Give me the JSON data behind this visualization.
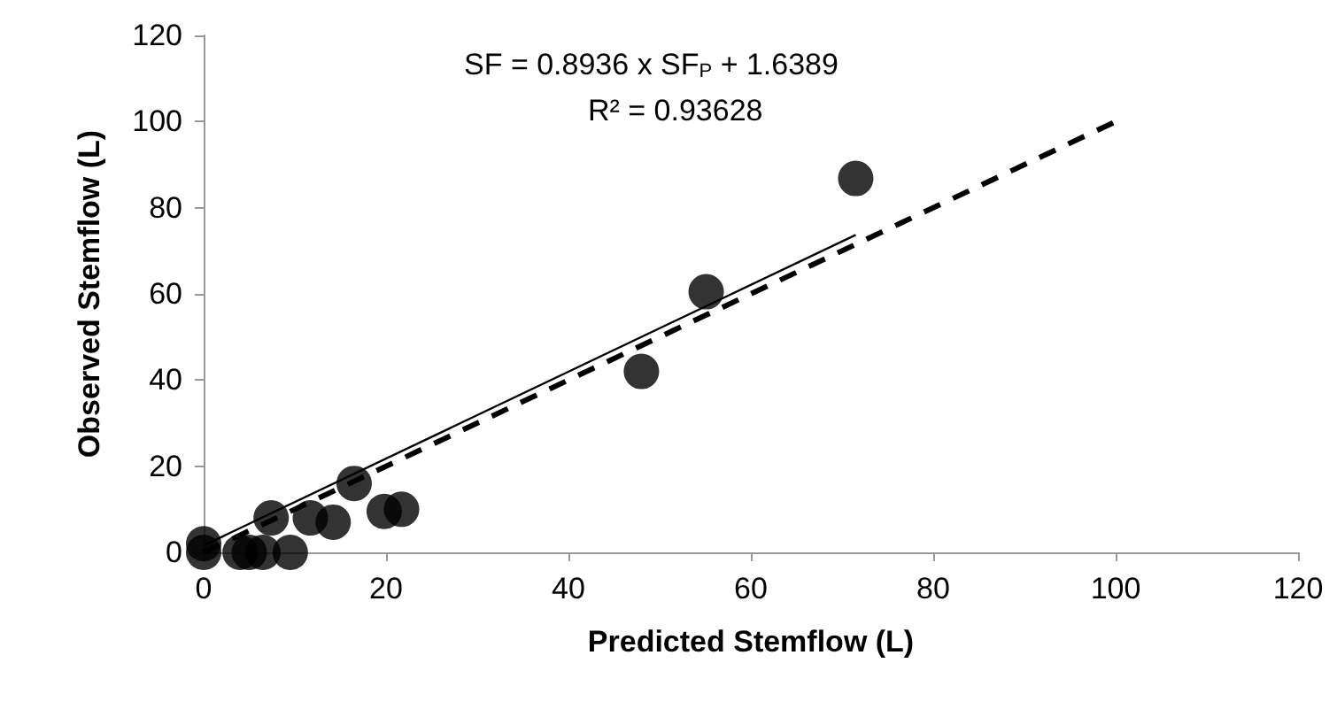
{
  "chart_data": {
    "type": "scatter",
    "xlabel": "Predicted Stemflow (L)",
    "ylabel": "Observed Stemflow (L)",
    "annotations": [
      "SF = 0.8936 x SF$_{P}$ + 1.6389",
      "R² = 0.93628"
    ],
    "xlim": [
      0,
      120
    ],
    "xticks": [
      0,
      20,
      40,
      60,
      80,
      100,
      120
    ],
    "ylim": [
      0,
      120
    ],
    "yticks": [
      0,
      20,
      40,
      60,
      80,
      100,
      120
    ],
    "grid": false,
    "marker": "circle",
    "series": [
      {
        "color": "#000000",
        "x": [
          0,
          0,
          4,
          5,
          6.5,
          7.4,
          9.5,
          11.7,
          14.2,
          16.5,
          19.8,
          21.7,
          48,
          55.1,
          71.5
        ],
        "values": [
          0,
          2,
          0,
          0,
          0,
          8,
          0,
          8,
          7,
          16,
          9.5,
          10,
          42,
          60.5,
          86.8
        ]
      },
      {
        "type": "line",
        "marker": "none",
        "color": "#000000",
        "line_style": "solid",
        "x": [
          0,
          71.5
        ],
        "values": [
          1.6,
          73.7
        ]
      },
      {
        "type": "line",
        "marker": "none",
        "color": "#000000",
        "line_style": "dashed",
        "x": [
          0,
          100
        ],
        "values": [
          0,
          100
        ]
      }
    ]
  }
}
